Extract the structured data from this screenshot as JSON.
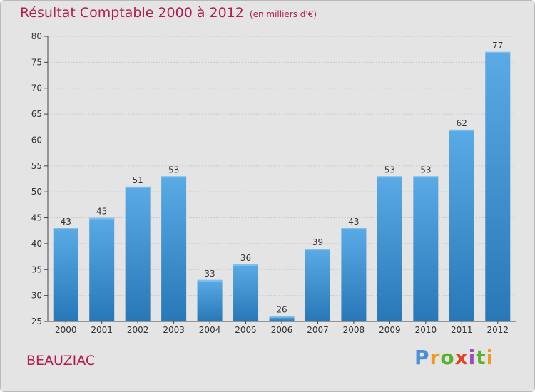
{
  "header": {
    "title": "Résultat Comptable 2000 à 2012",
    "subtitle": "(en milliers d'€)"
  },
  "footer": {
    "place": "BEAUZIAC",
    "logo": "Proxiti"
  },
  "colors": {
    "title": "#b01f4e",
    "bar_top": "#5aaae6",
    "bar_bottom": "#2878b8",
    "background": "#e4e4e4"
  },
  "chart_data": {
    "type": "bar",
    "title": "Résultat Comptable 2000 à 2012",
    "subtitle": "(en milliers d'€)",
    "xlabel": "",
    "ylabel": "",
    "categories": [
      "2000",
      "2001",
      "2002",
      "2003",
      "2004",
      "2005",
      "2006",
      "2007",
      "2008",
      "2009",
      "2010",
      "2011",
      "2012"
    ],
    "values": [
      43,
      45,
      51,
      53,
      33,
      36,
      26,
      39,
      43,
      53,
      53,
      62,
      77
    ],
    "ylim": [
      25,
      80
    ],
    "yticks": [
      25,
      30,
      35,
      40,
      45,
      50,
      55,
      60,
      65,
      70,
      75,
      80
    ],
    "grid": true
  }
}
